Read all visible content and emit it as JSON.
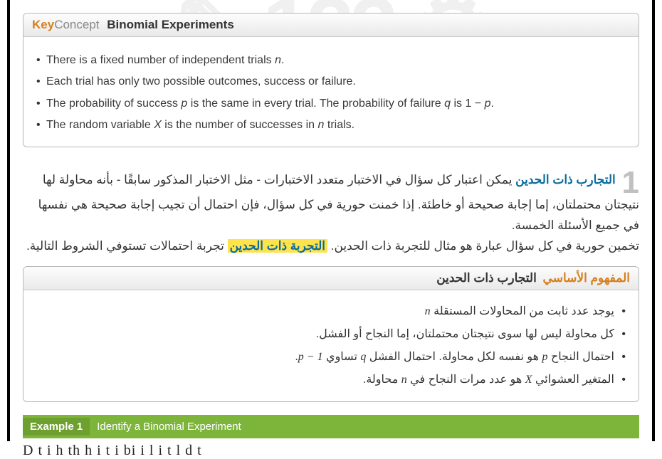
{
  "english_box": {
    "key": "Key",
    "concept": "Concept",
    "title": "Binomial Experiments",
    "bullets": [
      "There is a fixed number of independent trials n.",
      "Each trial has only two possible outcomes, success or failure.",
      "The probability of success p is the same in every trial. The probability of failure q is 1 − p.",
      "The random variable X is the number of successes in n trials."
    ]
  },
  "arabic_intro": {
    "num": "1",
    "heading": "التجارب ذات الحدين",
    "para1": "يمكن اعتبار كل سؤال في الاختبار متعدد الاختبارات - مثل الاختبار المذكور سابقًا - بأنه محاولة لها نتيجتان محتملتان، إما إجابة صحيحة أو خاطئة. إذا خمنت حورية في كل سؤال، فإن احتمال أن تجيب إجابة صحيحة هي نفسها في جميع الأسئلة الخمسة.",
    "para2a": "تخمين حورية في كل سؤال عبارة هو مثال للتجربة ذات الحدين. ",
    "highlight": "التجربة ذات الحدين",
    "para2b": " تجربة احتمالات تستوفي الشروط التالية."
  },
  "arabic_box": {
    "pre": "المفهوم الأساسي",
    "title": "التجارب ذات الحدين",
    "bullets": [
      "يوجد عدد ثابت من المحاولات المستقلة n",
      "كل محاولة ليس لها سوى نتيجتان محتملتان، إما النجاح أو الفشل.",
      "احتمال النجاح p هو نفسه لكل محاولة. احتمال الفشل q تساوي p − 1.",
      "المتغير العشوائي X هو عدد مرات النجاح في n محاولة."
    ]
  },
  "example": {
    "label": "Example 1",
    "title": "Identify a Binomial Experiment"
  },
  "cut": "D  t      i      h  th         h         i     t i     bi     i l        i     t              l    d t"
}
